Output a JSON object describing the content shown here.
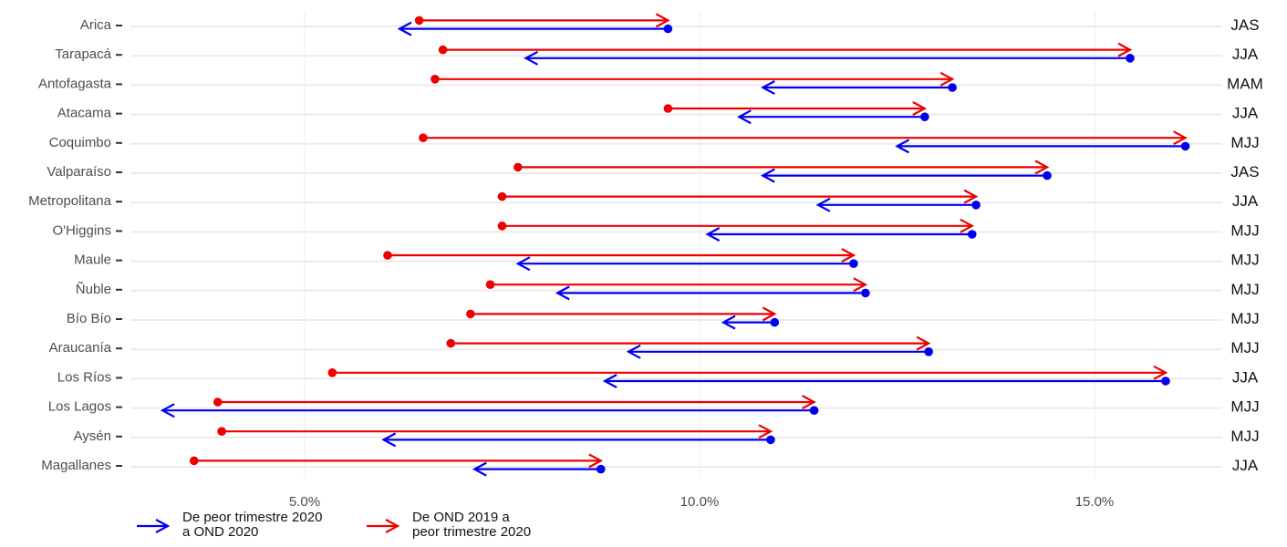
{
  "chart_data": {
    "type": "dumbbell-arrow",
    "title": "",
    "xlabel": "",
    "ylabel": "",
    "x_unit": "%",
    "xlim": [
      1.8,
      17.5
    ],
    "x_ticks": [
      5.0,
      10.0,
      15.0
    ],
    "x_tick_labels": [
      "5.0%",
      "10.0%",
      "15.0%"
    ],
    "grid": "horizontal major lines",
    "legend_position": "bottom-left",
    "colors": {
      "blue": "#0000ee",
      "red": "#ee0000",
      "grid": "#ebebeb",
      "text": "#4d4d4d"
    },
    "legend": [
      {
        "name": "De peor trimestre 2020 a OND 2020",
        "lines": [
          "De peor trimestre 2020",
          "a OND 2020"
        ],
        "color": "#0000ee"
      },
      {
        "name": "De OND 2019 a peor trimestre 2020",
        "lines": [
          "De OND 2019 a",
          "peor trimestre 2020"
        ],
        "color": "#ee0000"
      }
    ],
    "categories": [
      "Arica",
      "Tarapacá",
      "Antofagasta",
      "Atacama",
      "Coquimbo",
      "Valparaíso",
      "Metropolitana",
      "O'Higgins",
      "Maule",
      "Ñuble",
      "Bío Bío",
      "Araucanía",
      "Los Ríos",
      "Los Lagos",
      "Aysén",
      "Magallanes"
    ],
    "series": [
      {
        "name": "De OND 2019 a peor trimestre 2020",
        "color": "#ee0000",
        "from": [
          6.45,
          6.75,
          6.65,
          9.6,
          6.5,
          7.7,
          7.5,
          7.5,
          6.05,
          7.35,
          7.1,
          6.85,
          5.35,
          3.9,
          3.95,
          3.6
        ],
        "to": [
          9.6,
          15.45,
          13.2,
          12.85,
          16.15,
          14.4,
          13.5,
          13.45,
          11.95,
          12.1,
          10.95,
          12.9,
          15.9,
          11.45,
          10.9,
          8.75
        ]
      },
      {
        "name": "De peor trimestre 2020 a OND 2020",
        "color": "#0000ee",
        "from": [
          9.6,
          15.45,
          13.2,
          12.85,
          16.15,
          14.4,
          13.5,
          13.45,
          11.95,
          12.1,
          10.95,
          12.9,
          15.9,
          11.45,
          10.9,
          8.75
        ],
        "to": [
          6.2,
          7.8,
          10.8,
          10.5,
          12.5,
          10.8,
          11.5,
          10.1,
          7.7,
          8.2,
          10.3,
          9.1,
          8.8,
          3.2,
          6.0,
          7.15
        ]
      }
    ],
    "peak_period": [
      "JAS",
      "JJA",
      "MAM",
      "JJA",
      "MJJ",
      "JAS",
      "JJA",
      "MJJ",
      "MJJ",
      "MJJ",
      "MJJ",
      "MJJ",
      "JJA",
      "MJJ",
      "MJJ",
      "JJA"
    ]
  }
}
